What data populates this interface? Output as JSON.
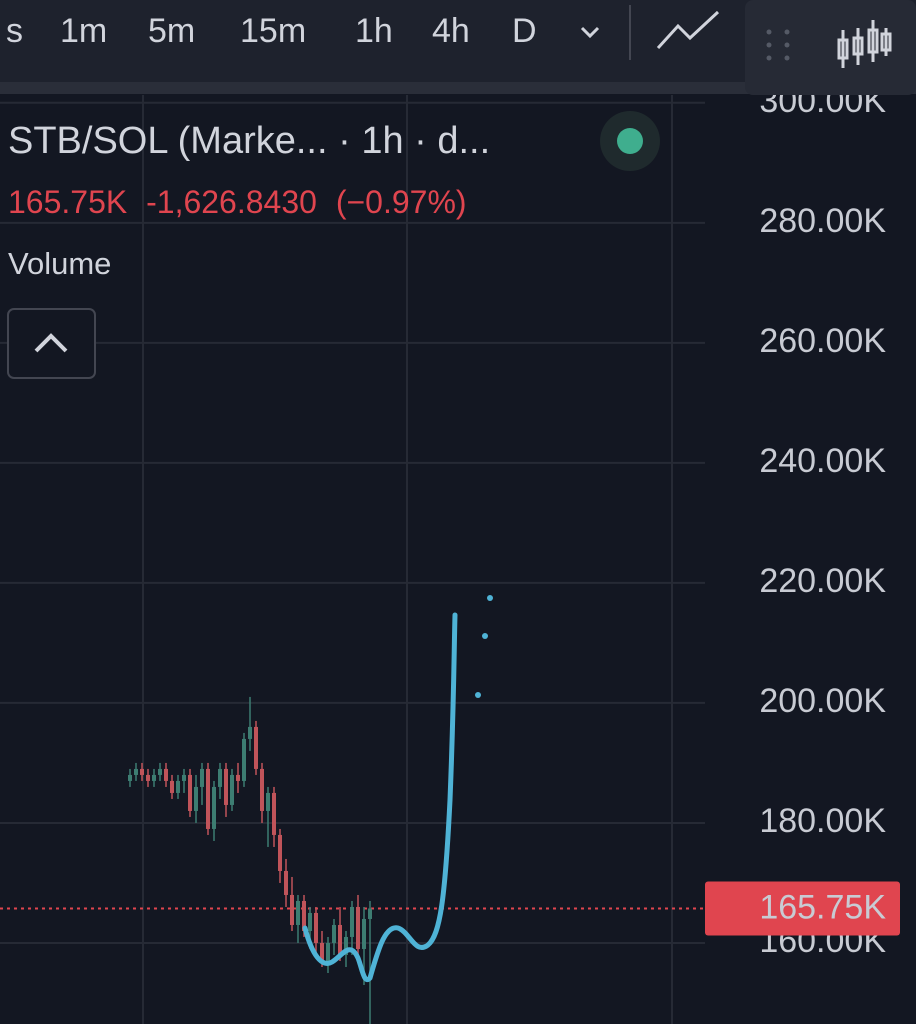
{
  "toolbar": {
    "intervals": [
      "s",
      "1m",
      "5m",
      "15m",
      "1h",
      "4h",
      "D"
    ],
    "active": "1h"
  },
  "legend": {
    "title": "STB/SOL (Marke... · 1h · d...",
    "price": "165.75K",
    "change": "-1,626.8430",
    "change_pct": "(−0.97%)",
    "indicator": "Volume"
  },
  "chart_data": {
    "type": "candlestick",
    "open": [
      187,
      188,
      189,
      188,
      187,
      188,
      189,
      187,
      185,
      187,
      188,
      182,
      186,
      189,
      179,
      186,
      189,
      183,
      188,
      187,
      194,
      196,
      189,
      182,
      185,
      178,
      172,
      168,
      163,
      167,
      162,
      165,
      160,
      157,
      160,
      163,
      158,
      161,
      166,
      159,
      164
    ],
    "high": [
      189,
      190,
      190,
      189,
      189,
      190,
      190,
      188,
      188,
      189,
      189,
      188,
      190,
      190,
      187,
      190,
      190,
      189,
      190,
      195,
      201,
      197,
      190,
      186,
      186,
      179,
      174,
      171,
      168,
      168,
      166,
      166,
      162,
      161,
      164,
      166,
      162,
      167,
      168,
      166,
      167
    ],
    "low": [
      186,
      187,
      187,
      186,
      186,
      187,
      186,
      184,
      184,
      185,
      181,
      180,
      183,
      178,
      177,
      184,
      181,
      182,
      185,
      186,
      192,
      188,
      180,
      176,
      176,
      170,
      166,
      162,
      160,
      161,
      159,
      158,
      156,
      155,
      158,
      157,
      156,
      158,
      157,
      153,
      146
    ],
    "close": [
      188,
      189,
      188,
      187,
      188,
      189,
      187,
      185,
      187,
      188,
      182,
      186,
      189,
      179,
      186,
      189,
      183,
      188,
      187,
      194,
      196,
      189,
      182,
      185,
      178,
      172,
      168,
      163,
      167,
      162,
      165,
      160,
      157,
      160,
      163,
      158,
      161,
      166,
      159,
      164,
      165.75
    ],
    "up_color": "#3d7d72",
    "down_color": "#c0545a",
    "ylim": [
      146.5,
      301.3
    ],
    "yticks": [
      {
        "value": 160,
        "label": "160.00K"
      },
      {
        "value": 180,
        "label": "180.00K"
      },
      {
        "value": 200,
        "label": "200.00K"
      },
      {
        "value": 220,
        "label": "220.00K"
      },
      {
        "value": 240,
        "label": "240.00K"
      },
      {
        "value": 260,
        "label": "260.00K"
      },
      {
        "value": 280,
        "label": "280.00K"
      },
      {
        "value": 300,
        "label": "300.00K"
      }
    ],
    "grid": true,
    "last_price": {
      "value": 165.75,
      "label": "165.75K"
    },
    "last_price_color": "#e0454f"
  }
}
